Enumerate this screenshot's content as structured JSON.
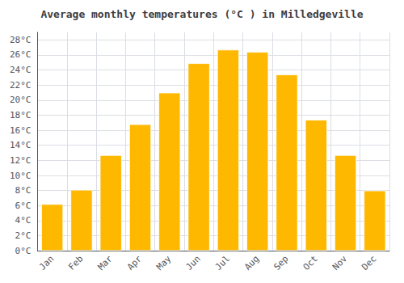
{
  "chart_data": {
    "type": "bar",
    "title": "Average monthly temperatures (°C ) in Milledgeville",
    "categories": [
      "Jan",
      "Feb",
      "Mar",
      "Apr",
      "May",
      "Jun",
      "Jul",
      "Aug",
      "Sep",
      "Oct",
      "Nov",
      "Dec"
    ],
    "values": [
      6.2,
      8.1,
      12.7,
      16.8,
      21.0,
      24.9,
      26.7,
      26.4,
      23.4,
      17.4,
      12.7,
      8.0
    ],
    "color": "#FFB800",
    "ylim": [
      0,
      29
    ],
    "yticks": [
      {
        "value": 0,
        "label": "0°C"
      },
      {
        "value": 2,
        "label": "2°C"
      },
      {
        "value": 4,
        "label": "4°C"
      },
      {
        "value": 6,
        "label": "6°C"
      },
      {
        "value": 8,
        "label": "8°C"
      },
      {
        "value": 10,
        "label": "10°C"
      },
      {
        "value": 12,
        "label": "12°C"
      },
      {
        "value": 14,
        "label": "14°C"
      },
      {
        "value": 16,
        "label": "16°C"
      },
      {
        "value": 18,
        "label": "18°C"
      },
      {
        "value": 20,
        "label": "20°C"
      },
      {
        "value": 22,
        "label": "22°C"
      },
      {
        "value": 24,
        "label": "24°C"
      },
      {
        "value": 26,
        "label": "26°C"
      },
      {
        "value": 28,
        "label": "28°C"
      }
    ],
    "grid": true
  }
}
